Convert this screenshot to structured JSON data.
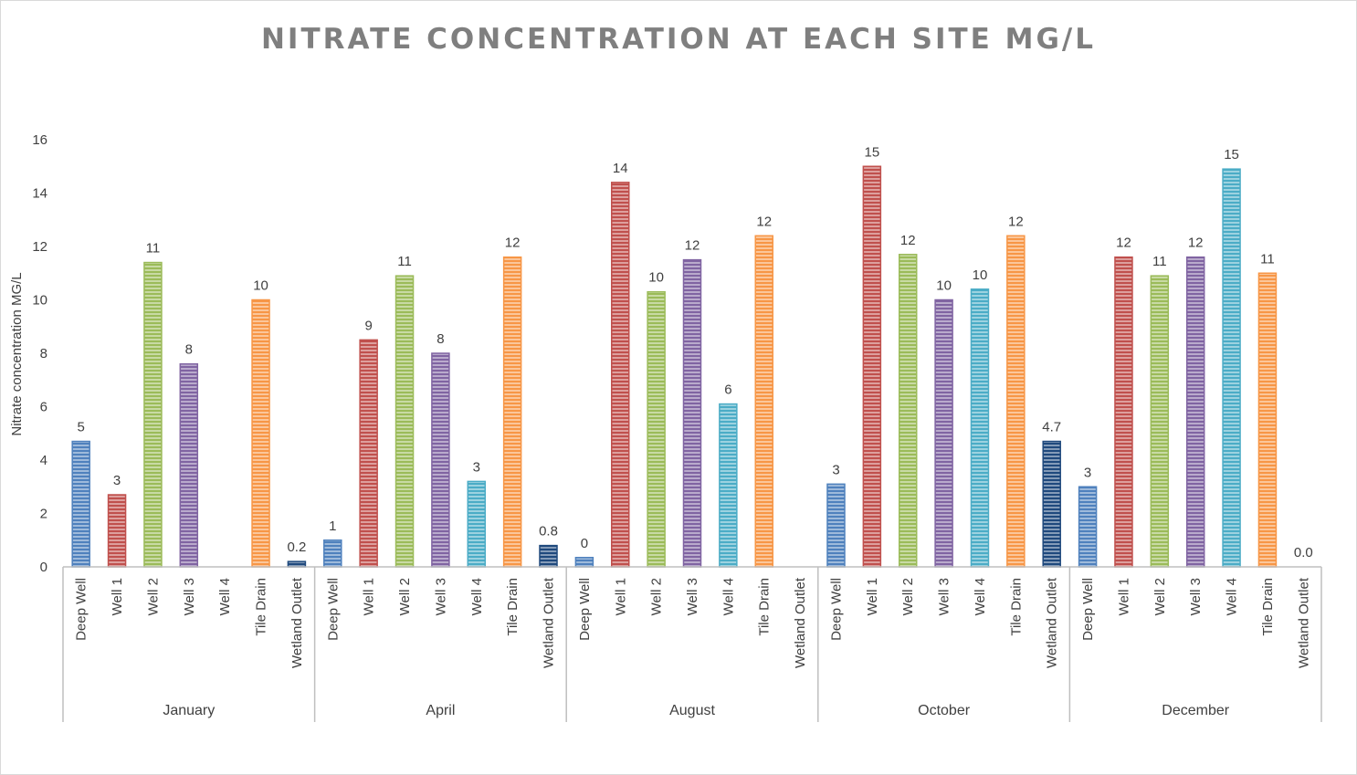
{
  "chart_data": {
    "type": "bar",
    "title": "NITRATE CONCENTRATION AT EACH SITE MG/L",
    "ylabel": "Nitrate concentration MG/L",
    "xlabel": "",
    "ylim": [
      0,
      16
    ],
    "yticks": [
      0,
      2,
      4,
      6,
      8,
      10,
      12,
      14,
      16
    ],
    "grid": false,
    "legend": "none",
    "sites": [
      "Deep Well",
      "Well 1",
      "Well 2",
      "Well 3",
      "Well 4",
      "Tile Drain",
      "Wetland Outlet"
    ],
    "site_colors": {
      "Deep Well": "#4f81bd",
      "Well 1": "#c0504d",
      "Well 2": "#9bbb59",
      "Well 3": "#8064a2",
      "Well 4": "#4bacc6",
      "Tile Drain": "#f79646",
      "Wetland Outlet": "#1f497d"
    },
    "groups": [
      {
        "name": "January",
        "values": [
          4.7,
          2.7,
          11.4,
          7.6,
          null,
          10.0,
          0.2
        ],
        "labels": [
          "5",
          "3",
          "11",
          "8",
          "",
          "10",
          "0.2"
        ]
      },
      {
        "name": "April",
        "values": [
          1.0,
          8.5,
          10.9,
          8.0,
          3.2,
          11.6,
          0.8
        ],
        "labels": [
          "1",
          "9",
          "11",
          "8",
          "3",
          "12",
          "0.8"
        ]
      },
      {
        "name": "August",
        "values": [
          0.35,
          14.4,
          10.3,
          11.5,
          6.1,
          12.4,
          null
        ],
        "labels": [
          "0",
          "14",
          "10",
          "12",
          "6",
          "12",
          ""
        ]
      },
      {
        "name": "October",
        "values": [
          3.1,
          15.0,
          11.7,
          10.0,
          10.4,
          12.4,
          4.7
        ],
        "labels": [
          "3",
          "15",
          "12",
          "10",
          "10",
          "12",
          "4.7"
        ]
      },
      {
        "name": "December",
        "values": [
          3.0,
          11.6,
          10.9,
          11.6,
          14.9,
          11.0,
          0.0
        ],
        "labels": [
          "3",
          "12",
          "11",
          "12",
          "15",
          "11",
          "0.0"
        ]
      }
    ]
  }
}
